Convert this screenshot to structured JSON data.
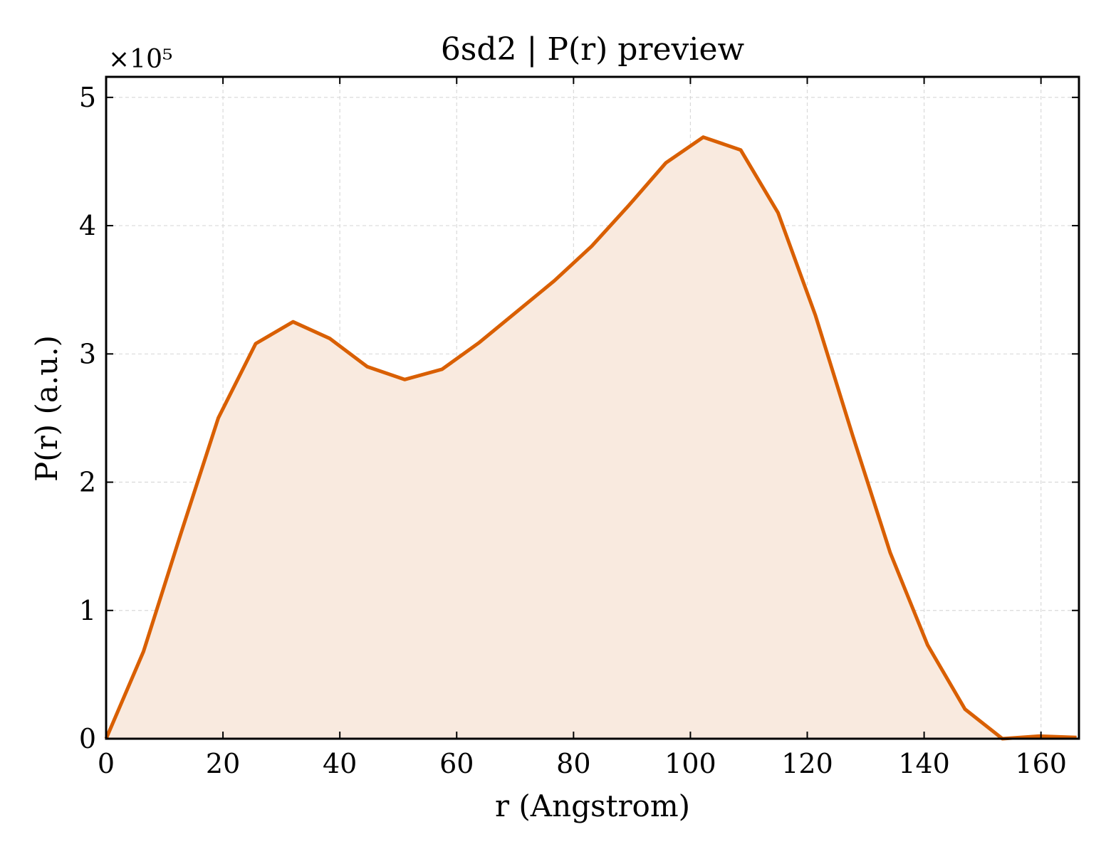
{
  "chart_data": {
    "type": "area",
    "title": "6sd2 | P(r) preview",
    "xlabel": "r (Angstrom)",
    "ylabel": "P(r) (a.u.)",
    "y_multiplier_label": "×10⁵",
    "y_scale": 100000,
    "xlim": [
      0,
      166.5
    ],
    "ylim": [
      0,
      5.16
    ],
    "x_ticks": [
      0,
      20,
      40,
      60,
      80,
      100,
      120,
      140,
      160
    ],
    "y_ticks": [
      0,
      1,
      2,
      3,
      4,
      5
    ],
    "grid": true,
    "colors": {
      "line": "#d95f02",
      "fill": "#f9eadf",
      "grid": "#d9d9d9",
      "axes": "#000000"
    },
    "series": [
      {
        "x": [
          0,
          6.4,
          12.8,
          19.2,
          25.6,
          32.0,
          38.3,
          44.7,
          51.1,
          57.5,
          63.9,
          70.3,
          76.7,
          83.1,
          89.5,
          95.8,
          102.2,
          108.6,
          115.0,
          121.4,
          127.8,
          134.2,
          140.6,
          147.0,
          153.4,
          159.7,
          166.1
        ],
        "y": [
          0.0,
          0.68,
          1.6,
          2.5,
          3.08,
          3.25,
          3.12,
          2.9,
          2.8,
          2.88,
          3.09,
          3.33,
          3.57,
          3.84,
          4.16,
          4.49,
          4.69,
          4.59,
          4.1,
          3.3,
          2.36,
          1.45,
          0.73,
          0.23,
          0.0,
          0.02,
          0.01
        ]
      }
    ]
  }
}
